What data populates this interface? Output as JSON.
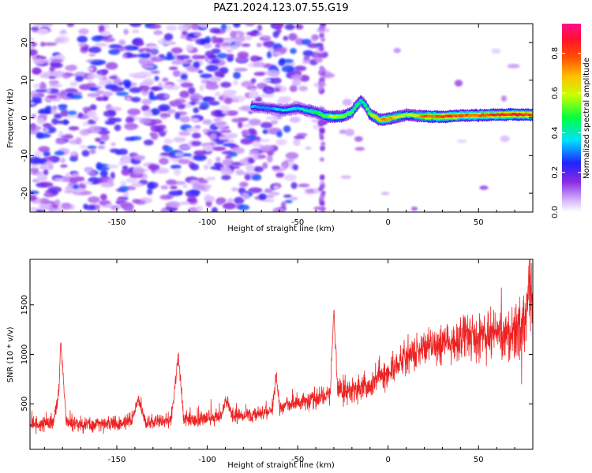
{
  "chart_data": [
    {
      "type": "heatmap",
      "title": "PAZ1.2024.123.07.55.G19",
      "xlabel": "Height of straight line (km)",
      "ylabel": "Frequency (Hz)",
      "xlim": [
        -198,
        80
      ],
      "ylim": [
        -25,
        25
      ],
      "x_ticks": [
        -150,
        -100,
        -50,
        0,
        50
      ],
      "y_ticks": [
        -20,
        -10,
        0,
        10,
        20
      ],
      "colorbar": {
        "label": "Normalized spectral amplitude",
        "range": [
          0,
          0.95
        ],
        "ticks": [
          0.0,
          0.2,
          0.4,
          0.6,
          0.8
        ],
        "colormap": "rainbow (white → violet → blue → cyan → green → yellow → orange → red → pink)"
      },
      "description": "Noisy low-amplitude speckle below about -35 km; a coherent tone near 0 to 3 Hz from about -75 km to 80 km",
      "ridge": {
        "x": [
          -75,
          -65,
          -58,
          -50,
          -45,
          -40,
          -35,
          -30,
          -25,
          -20,
          -17,
          -15,
          -12,
          -10,
          -7,
          -5,
          0,
          5,
          10,
          15,
          20,
          30,
          40,
          50,
          60,
          70,
          80
        ],
        "frequency": [
          3.0,
          2.5,
          2.0,
          2.6,
          2.0,
          1.5,
          0.5,
          0.3,
          0.4,
          1.5,
          3.5,
          4.5,
          3.0,
          1.0,
          0.2,
          -0.5,
          -0.3,
          0.3,
          0.8,
          0.6,
          0.4,
          0.3,
          0.6,
          0.7,
          0.8,
          0.9,
          0.8
        ],
        "amplitude": [
          0.35,
          0.35,
          0.4,
          0.4,
          0.45,
          0.5,
          0.55,
          0.65,
          0.6,
          0.55,
          0.5,
          0.45,
          0.5,
          0.6,
          0.7,
          0.75,
          0.8,
          0.7,
          0.6,
          0.65,
          0.8,
          0.9,
          0.85,
          0.85,
          0.9,
          0.92,
          0.88
        ]
      }
    },
    {
      "type": "line",
      "xlabel": "Height of straight line (km)",
      "ylabel": "SNR (10 * v/v)",
      "xlim": [
        -198,
        80
      ],
      "ylim": [
        40,
        1960
      ],
      "x_ticks": [
        -150,
        -100,
        -50,
        0,
        50
      ],
      "y_ticks": [
        500,
        1000,
        1500
      ],
      "series": [
        {
          "color": "#ee2222",
          "x": [
            -198,
            -190,
            -185,
            -182,
            -181,
            -178,
            -170,
            -160,
            -150,
            -142,
            -138,
            -134,
            -128,
            -120,
            -117,
            -116,
            -113,
            -106,
            -100,
            -92,
            -90,
            -86,
            -80,
            -72,
            -64,
            -62,
            -60,
            -56,
            -50,
            -44,
            -38,
            -32,
            -30,
            -28,
            -22,
            -16,
            -10,
            -4,
            0,
            6,
            12,
            20,
            30,
            40,
            50,
            55,
            60,
            65,
            70,
            74,
            76,
            78,
            80
          ],
          "y": [
            280,
            300,
            320,
            620,
            1150,
            320,
            290,
            290,
            300,
            320,
            560,
            320,
            320,
            330,
            820,
            1000,
            340,
            340,
            345,
            370,
            560,
            380,
            380,
            400,
            420,
            800,
            450,
            500,
            500,
            530,
            570,
            600,
            1450,
            640,
            620,
            650,
            700,
            760,
            800,
            900,
            980,
            1050,
            1100,
            1150,
            1190,
            1200,
            1200,
            1200,
            1200,
            1150,
            1400,
            1700,
            1600
          ]
        }
      ]
    }
  ]
}
